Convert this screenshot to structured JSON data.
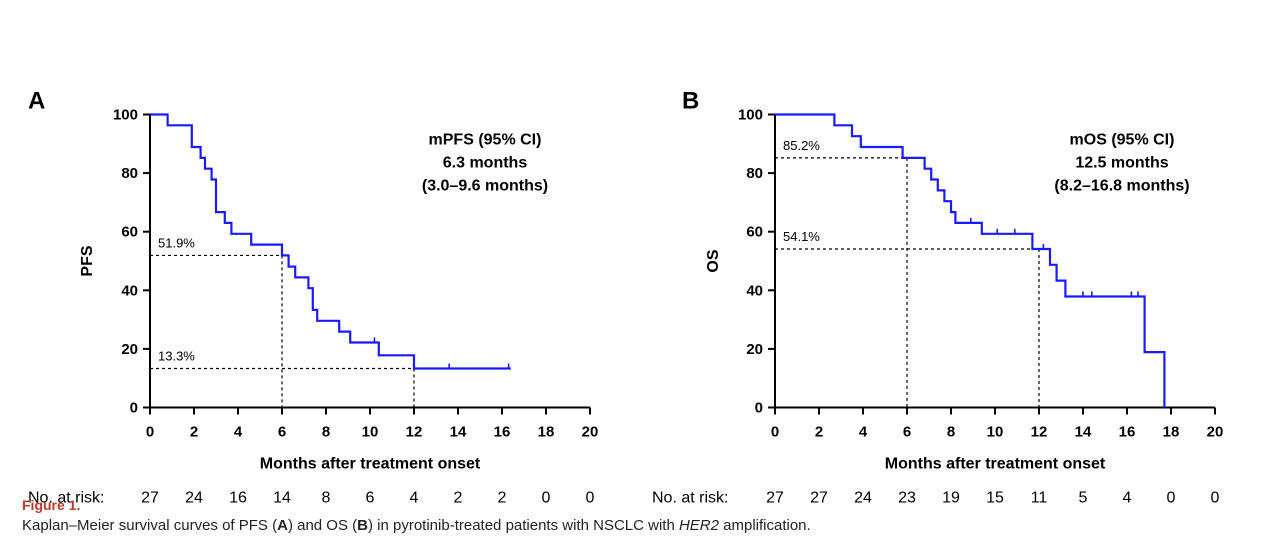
{
  "chart_data": [
    {
      "type": "line",
      "panel": "A",
      "ylabel": "PFS",
      "xlabel": "Months after treatment onset",
      "xlim": [
        0,
        20
      ],
      "ylim": [
        0,
        100
      ],
      "x_ticks": [
        0,
        2,
        4,
        6,
        8,
        10,
        12,
        14,
        16,
        18,
        20
      ],
      "y_ticks": [
        0,
        20,
        40,
        60,
        80,
        100
      ],
      "series": [
        {
          "color": "#1a1aff",
          "steps": [
            [
              0,
              100
            ],
            [
              0.8,
              100
            ],
            [
              0.8,
              96.3
            ],
            [
              1.9,
              96.3
            ],
            [
              1.9,
              88.9
            ],
            [
              2.3,
              88.9
            ],
            [
              2.3,
              85.2
            ],
            [
              2.5,
              85.2
            ],
            [
              2.5,
              81.5
            ],
            [
              2.8,
              81.5
            ],
            [
              2.8,
              77.8
            ],
            [
              3.0,
              77.8
            ],
            [
              3.0,
              66.7
            ],
            [
              3.4,
              66.7
            ],
            [
              3.4,
              63.0
            ],
            [
              3.7,
              63.0
            ],
            [
              3.7,
              59.3
            ],
            [
              4.6,
              59.3
            ],
            [
              4.6,
              55.6
            ],
            [
              6.0,
              55.6
            ],
            [
              6.0,
              51.9
            ],
            [
              6.3,
              51.9
            ],
            [
              6.3,
              48.1
            ],
            [
              6.6,
              48.1
            ],
            [
              6.6,
              44.4
            ],
            [
              7.2,
              44.4
            ],
            [
              7.2,
              40.7
            ],
            [
              7.4,
              40.7
            ],
            [
              7.4,
              33.3
            ],
            [
              7.6,
              33.3
            ],
            [
              7.6,
              29.6
            ],
            [
              8.6,
              29.6
            ],
            [
              8.6,
              25.9
            ],
            [
              9.1,
              25.9
            ],
            [
              9.1,
              22.2
            ],
            [
              10.4,
              22.2
            ],
            [
              10.4,
              17.8
            ],
            [
              12.0,
              17.8
            ],
            [
              12.0,
              13.3
            ],
            [
              16.4,
              13.3
            ]
          ],
          "censor_marks": [
            [
              10.2,
              22.2
            ],
            [
              13.6,
              13.3
            ],
            [
              16.3,
              13.3
            ]
          ]
        }
      ],
      "reference_lines": [
        {
          "label": "51.9%",
          "y": 51.9,
          "x": 6
        },
        {
          "label": "13.3%",
          "y": 13.3,
          "x": 12
        }
      ],
      "annotation": [
        "mPFS (95% CI)",
        "6.3 months",
        "(3.0–9.6 months)"
      ],
      "at_risk": {
        "label": "No. at risk:",
        "counts": [
          "27",
          "24",
          "16",
          "14",
          "8",
          "6",
          "4",
          "2",
          "2",
          "0",
          "0"
        ]
      }
    },
    {
      "type": "line",
      "panel": "B",
      "ylabel": "OS",
      "xlabel": "Months after treatment onset",
      "xlim": [
        0,
        20
      ],
      "ylim": [
        0,
        100
      ],
      "x_ticks": [
        0,
        2,
        4,
        6,
        8,
        10,
        12,
        14,
        16,
        18,
        20
      ],
      "y_ticks": [
        0,
        20,
        40,
        60,
        80,
        100
      ],
      "series": [
        {
          "color": "#1a1aff",
          "steps": [
            [
              0,
              100
            ],
            [
              2.7,
              100
            ],
            [
              2.7,
              96.3
            ],
            [
              3.5,
              96.3
            ],
            [
              3.5,
              92.6
            ],
            [
              3.9,
              92.6
            ],
            [
              3.9,
              88.9
            ],
            [
              5.8,
              88.9
            ],
            [
              5.8,
              85.2
            ],
            [
              6.8,
              85.2
            ],
            [
              6.8,
              81.5
            ],
            [
              7.1,
              81.5
            ],
            [
              7.1,
              77.8
            ],
            [
              7.4,
              77.8
            ],
            [
              7.4,
              74.1
            ],
            [
              7.7,
              74.1
            ],
            [
              7.7,
              70.4
            ],
            [
              8.0,
              70.4
            ],
            [
              8.0,
              66.7
            ],
            [
              8.2,
              66.7
            ],
            [
              8.2,
              63.0
            ],
            [
              9.4,
              63.0
            ],
            [
              9.4,
              59.3
            ],
            [
              11.7,
              59.3
            ],
            [
              11.7,
              54.1
            ],
            [
              12.5,
              54.1
            ],
            [
              12.5,
              48.7
            ],
            [
              12.8,
              48.7
            ],
            [
              12.8,
              43.3
            ],
            [
              13.2,
              43.3
            ],
            [
              13.2,
              37.9
            ],
            [
              16.8,
              37.9
            ],
            [
              16.8,
              18.9
            ],
            [
              17.7,
              18.9
            ],
            [
              17.7,
              0
            ]
          ],
          "censor_marks": [
            [
              8.9,
              63.0
            ],
            [
              10.1,
              59.3
            ],
            [
              10.9,
              59.3
            ],
            [
              12.2,
              54.1
            ],
            [
              14.0,
              37.9
            ],
            [
              14.4,
              37.9
            ],
            [
              16.2,
              37.9
            ],
            [
              16.5,
              37.9
            ]
          ]
        }
      ],
      "reference_lines": [
        {
          "label": "85.2%",
          "y": 85.2,
          "x": 6
        },
        {
          "label": "54.1%",
          "y": 54.1,
          "x": 12
        }
      ],
      "annotation": [
        "mOS (95% CI)",
        "12.5 months",
        "(8.2–16.8 months)"
      ],
      "at_risk": {
        "label": "No. at risk:",
        "counts": [
          "27",
          "27",
          "24",
          "23",
          "19",
          "15",
          "11",
          "5",
          "4",
          "0",
          "0"
        ]
      }
    }
  ],
  "caption": {
    "title": "Figure 1.",
    "text_parts": [
      {
        "text": "Kaplan–Meier survival curves of PFS (",
        "style": "normal"
      },
      {
        "text": "A",
        "style": "bold"
      },
      {
        "text": ") and OS (",
        "style": "normal"
      },
      {
        "text": "B",
        "style": "bold"
      },
      {
        "text": ") in pyrotinib-treated patients with NSCLC with ",
        "style": "normal"
      },
      {
        "text": "HER2",
        "style": "italic"
      },
      {
        "text": " amplification.",
        "style": "normal"
      }
    ]
  }
}
